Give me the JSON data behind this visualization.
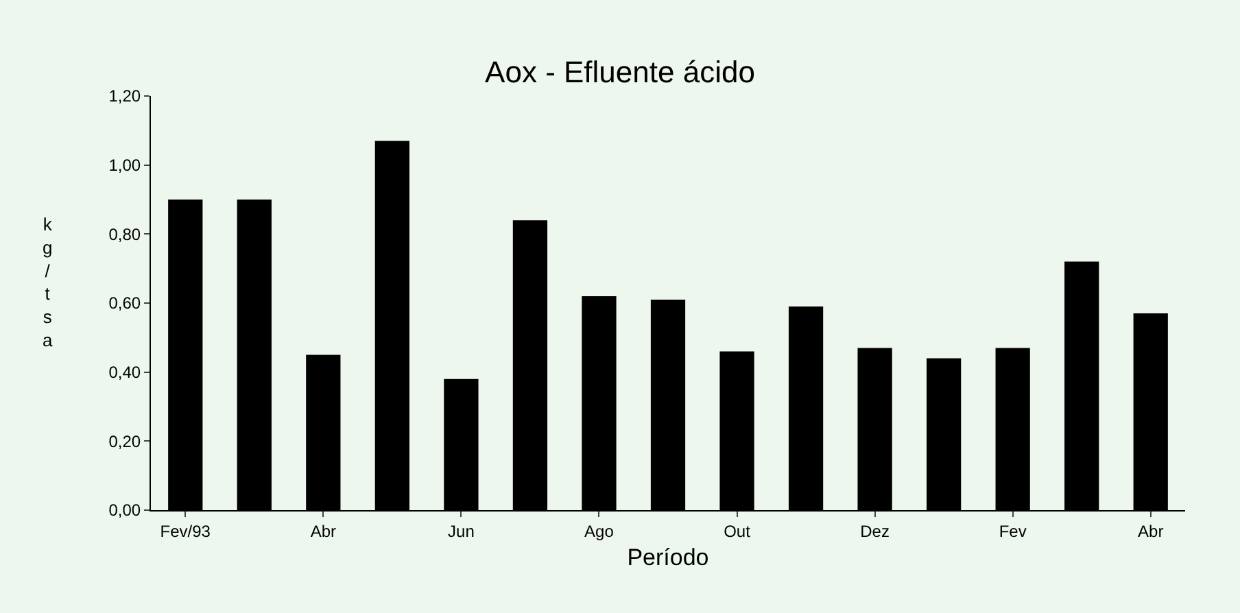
{
  "chart_data": {
    "type": "bar",
    "title": "Aox - Efluente ácido",
    "xlabel": "Período",
    "ylabel": "kg/tsa",
    "categories": [
      "Fev/93",
      null,
      "Abr",
      null,
      "Jun",
      null,
      "Ago",
      null,
      "Out",
      null,
      "Dez",
      null,
      "Fev",
      null,
      "Abr"
    ],
    "values": [
      0.9,
      0.9,
      0.45,
      1.07,
      0.38,
      0.84,
      0.62,
      0.61,
      0.46,
      0.59,
      0.47,
      0.44,
      0.47,
      0.72,
      0.57
    ],
    "color": "#000000",
    "ylim": [
      0,
      1.2
    ],
    "yticks": [
      {
        "value": 0,
        "label": "0,00"
      },
      {
        "value": 0.2,
        "label": "0,20"
      },
      {
        "value": 0.4,
        "label": "0,40"
      },
      {
        "value": 0.6,
        "label": "0,60"
      },
      {
        "value": 0.8,
        "label": "0,80"
      },
      {
        "value": 1.0,
        "label": "1,00"
      },
      {
        "value": 1.2,
        "label": "1,20"
      }
    ],
    "grid": false
  }
}
